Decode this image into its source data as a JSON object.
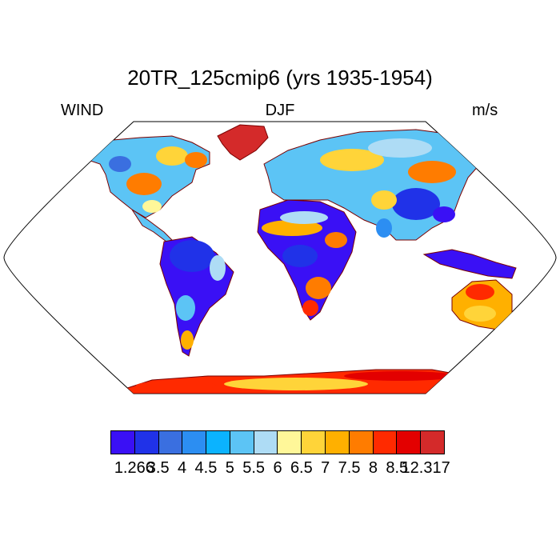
{
  "title": "20TR_125cmip6 (yrs 1935-1954)",
  "subtitles": {
    "left": "WIND",
    "center": "DJF",
    "right": "m/s"
  },
  "colorbar": {
    "colors": [
      "#3a10f5",
      "#2032e8",
      "#3a6fe0",
      "#2c8ef2",
      "#0bb3ff",
      "#5cc4f5",
      "#aedcf5",
      "#fff799",
      "#ffd439",
      "#ffb000",
      "#ff7c00",
      "#ff2a00",
      "#e30000",
      "#d42a2a"
    ],
    "labels": [
      "1.266",
      "3.5",
      "4",
      "4.5",
      "5",
      "5.5",
      "6",
      "6.5",
      "7",
      "7.5",
      "8",
      "8.5",
      "12.317"
    ]
  },
  "map": {
    "projection": "robinson",
    "land_fill": "#5cc4f5",
    "ocean_fill": "#ffffff",
    "coastline_color": "#000000"
  }
}
